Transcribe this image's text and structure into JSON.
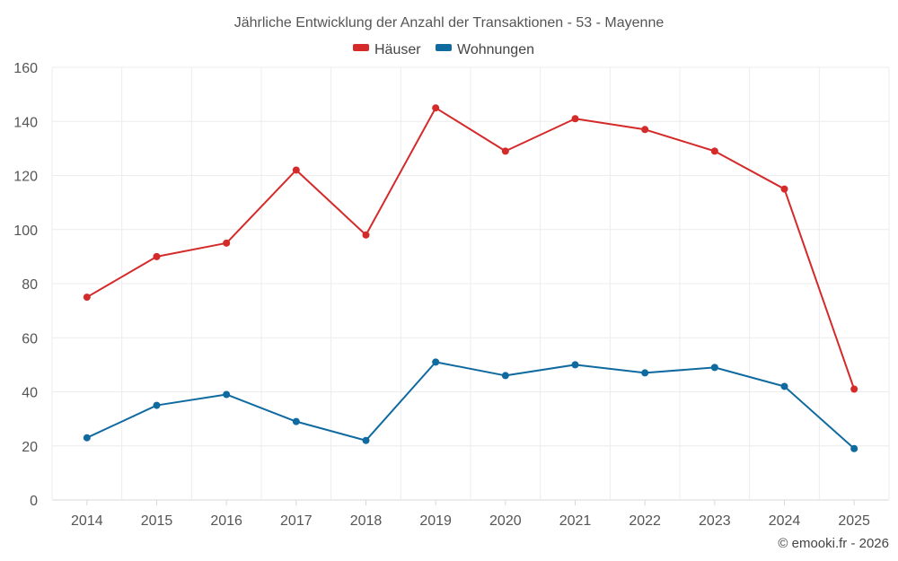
{
  "chart_data": {
    "type": "line",
    "title": "Jährliche Entwicklung der Anzahl der Transaktionen - 53 - Mayenne",
    "categories": [
      "2014",
      "2015",
      "2016",
      "2017",
      "2018",
      "2019",
      "2020",
      "2021",
      "2022",
      "2023",
      "2024",
      "2025"
    ],
    "series": [
      {
        "name": "Häuser",
        "color": "#d42a2a",
        "values": [
          75,
          90,
          95,
          122,
          98,
          145,
          129,
          141,
          137,
          129,
          115,
          41
        ]
      },
      {
        "name": "Wohnungen",
        "color": "#0f6aa0",
        "values": [
          23,
          35,
          39,
          29,
          22,
          51,
          46,
          50,
          47,
          49,
          42,
          19
        ]
      }
    ],
    "ylim": [
      0,
      160
    ],
    "yticks": [
      "0",
      "20",
      "40",
      "60",
      "80",
      "100",
      "120",
      "140",
      "160"
    ],
    "xlabel": "",
    "ylabel": "",
    "grid": true,
    "legend_position": "top-center"
  },
  "credit": "© emooki.fr - 2026"
}
